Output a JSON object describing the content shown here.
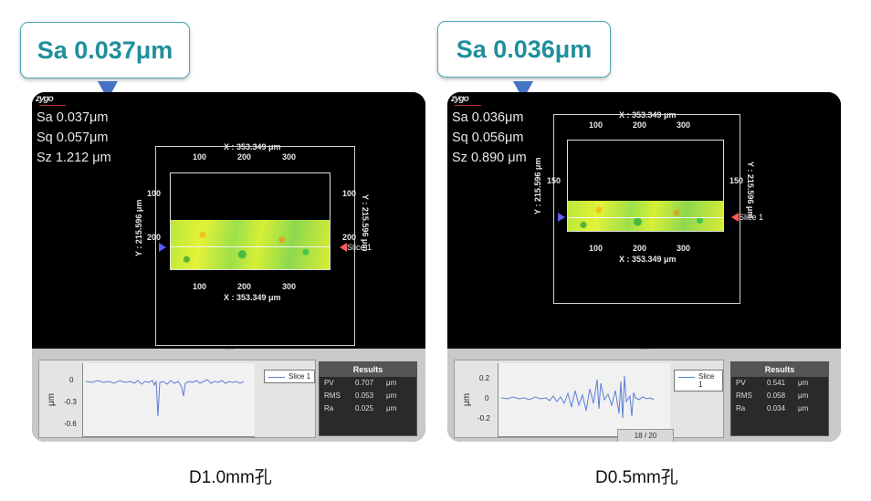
{
  "left": {
    "callout": "Sa 0.037μm",
    "stats": [
      "Sa 0.037μm",
      "Sq 0.057μm",
      "Sz 1.212 μm"
    ],
    "x_axis_label": "X : 353.349 μm",
    "y_axis_label": "Y : 215.596 μm",
    "x_ticks": [
      "100",
      "200",
      "300"
    ],
    "y_ticks": [
      "100",
      "200"
    ],
    "slice": "Slice 1",
    "plot_yticks": [
      "0",
      "-0.3",
      "-0.6"
    ],
    "plot_ylabel": "μm",
    "legend": "Slice 1",
    "results_title": "Results",
    "results": [
      {
        "name": "PV",
        "value": "0.707",
        "unit": "μm"
      },
      {
        "name": "RMS",
        "value": "0.053",
        "unit": "μm"
      },
      {
        "name": "Ra",
        "value": "0.025",
        "unit": "μm"
      }
    ],
    "caption": "D1.0mm孔"
  },
  "right": {
    "callout": "Sa 0.036μm",
    "stats": [
      "Sa 0.036μm",
      "Sq 0.056μm",
      "Sz 0.890 μm"
    ],
    "x_axis_label": "X : 353.349 μm",
    "y_axis_label": "Y : 215.596 μm",
    "x_ticks": [
      "100",
      "200",
      "300"
    ],
    "y_ticks": [
      "150"
    ],
    "slice": "Slice 1",
    "plot_yticks": [
      "0.2",
      "0",
      "-0.2"
    ],
    "plot_ylabel": "μm",
    "legend": "Slice 1",
    "results_title": "Results",
    "results": [
      {
        "name": "PV",
        "value": "0.541",
        "unit": "μm"
      },
      {
        "name": "RMS",
        "value": "0.058",
        "unit": "μm"
      },
      {
        "name": "Ra",
        "value": "0.034",
        "unit": "μm"
      }
    ],
    "page_indicator": "18 / 20",
    "caption": "D0.5mm孔"
  },
  "colors": {
    "callout_text": "#1f8f9c",
    "callout_border": "#4aa8b5",
    "pointer": "#4472c4",
    "profile_line": "#5a7fd6"
  }
}
